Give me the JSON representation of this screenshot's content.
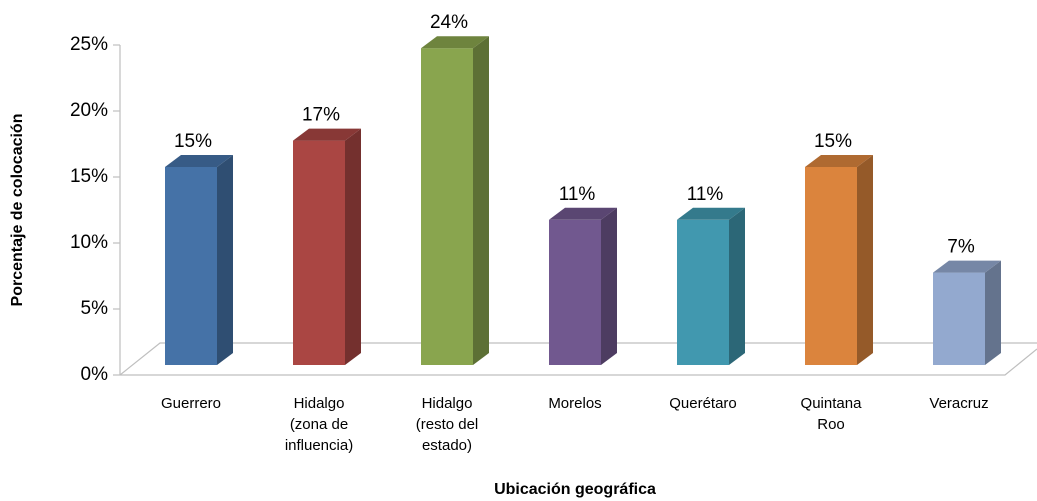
{
  "chart_data": {
    "type": "bar3d",
    "x_label": "Ubicación geográfica",
    "y_label": "Porcentaje de colocación",
    "categories": [
      "Guerrero",
      "Hidalgo (zona de influencia)",
      "Hidalgo (resto del estado)",
      "Morelos",
      "Querétaro",
      "Quintana Roo",
      "Veracruz"
    ],
    "values": [
      15,
      17,
      24,
      11,
      11,
      15,
      7
    ],
    "value_labels": [
      "15%",
      "17%",
      "24%",
      "11%",
      "11%",
      "15%",
      "7%"
    ],
    "colors": [
      "#4572a7",
      "#aa4643",
      "#89a54e",
      "#71588f",
      "#4198af",
      "#db843d",
      "#93a9cf"
    ],
    "ylim": [
      0,
      25
    ],
    "yticks": [
      {
        "value": 0,
        "label": "0%"
      },
      {
        "value": 5,
        "label": "5%"
      },
      {
        "value": 10,
        "label": "10%"
      },
      {
        "value": 15,
        "label": "15%"
      },
      {
        "value": 20,
        "label": "20%"
      },
      {
        "value": 25,
        "label": "25%"
      }
    ]
  }
}
